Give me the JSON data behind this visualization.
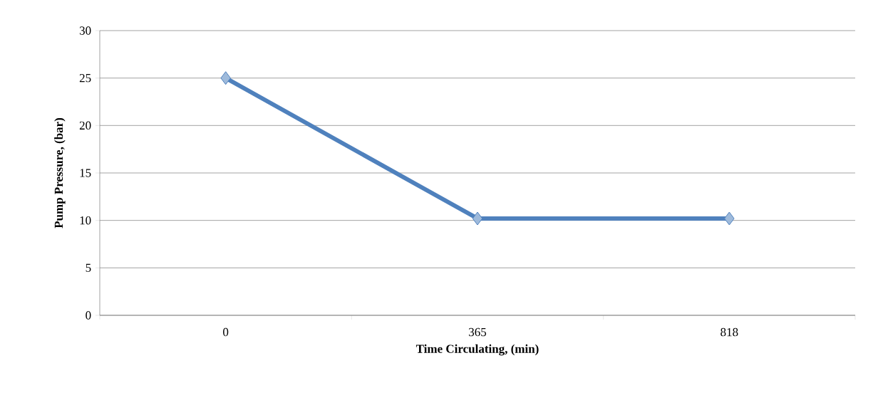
{
  "chart_data": {
    "type": "line",
    "xlabel": "Time Circulating, (min)",
    "ylabel": "Pump Pressure, (bar)",
    "categories": [
      "0",
      "365",
      "818"
    ],
    "values": [
      25,
      10.2,
      10.2
    ],
    "color": "#4f81bd",
    "ylim": [
      0,
      30
    ],
    "yticks": [
      0,
      5,
      10,
      15,
      20,
      25,
      30
    ],
    "grid": "y",
    "marker": "diamond",
    "line_style": "solid"
  }
}
